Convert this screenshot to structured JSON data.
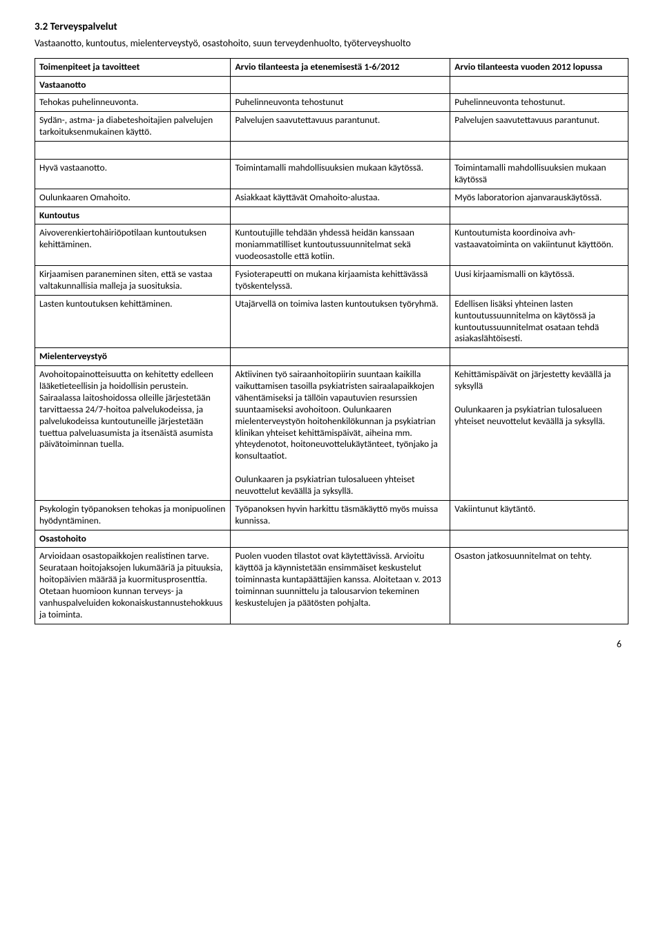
{
  "heading": "3.2 Terveyspalvelut",
  "subheading": "Vastaanotto, kuntoutus, mielenterveystyö, osastohoito, suun terveydenhuolto, työterveyshuolto",
  "columns": {
    "c1": "Toimenpiteet ja tavoitteet",
    "c2": "Arvio tilanteesta ja etenemisestä 1-6/2012",
    "c3": "Arvio tilanteesta vuoden 2012 lopussa"
  },
  "rows": [
    {
      "c1": "Vastaanotto",
      "c1_bold": true,
      "c2": "",
      "c3": ""
    },
    {
      "c1": "Tehokas puhelinneuvonta.",
      "c2": "Puhelinneuvonta tehostunut",
      "c3": "Puhelinneuvonta tehostunut."
    },
    {
      "c1": "Sydän-, astma- ja diabeteshoitajien palvelujen tarkoituksenmukainen käyttö.",
      "c2": "Palvelujen saavutettavuus parantunut.",
      "c2_just": true,
      "c3": "Palvelujen saavutettavuus parantunut."
    },
    {
      "blank": true
    },
    {
      "c1": "Hyvä vastaanotto.",
      "c2": "Toimintamalli mahdollisuuksien mukaan käytössä.",
      "c3": "Toimintamalli mahdollisuuksien mukaan käytössä"
    },
    {
      "c1": "Oulunkaaren Omahoito.",
      "c2": "Asiakkaat käyttävät Omahoito-alustaa.",
      "c3": "Myös laboratorion ajanvarauskäytössä."
    },
    {
      "c1": "Kuntoutus",
      "c1_bold": true,
      "c2": "",
      "c3": ""
    },
    {
      "c1": "Aivoverenkiertohäiriöpotilaan kuntoutuksen kehittäminen.",
      "c2": "Kuntoutujille tehdään yhdessä heidän kanssaan moniammatilliset kuntoutussuunnitelmat sekä vuodeosastolle että kotiin.",
      "c3": "Kuntoutumista koordinoiva avh-vastaavatoiminta on vakiintunut käyttöön."
    },
    {
      "c1": "Kirjaamisen paraneminen siten, että se vastaa valtakunnallisia malleja ja suosituksia.",
      "c2": "Fysioterapeutti on mukana kirjaamista kehittävässä työskentelyssä.",
      "c3": "Uusi kirjaamismalli on käytössä."
    },
    {
      "c1": "Lasten kuntoutuksen kehittäminen.",
      "c2": "Utajärvellä on toimiva lasten kuntoutuksen työryhmä.",
      "c3": "Edellisen lisäksi yhteinen lasten kuntoutussuunnitelma on käytössä ja kuntoutussuunnitelmat osataan tehdä asiakaslähtöisesti."
    },
    {
      "c1": "Mielenterveystyö",
      "c1_bold": true,
      "c2": "",
      "c3": ""
    },
    {
      "c1": "Avohoitopainotteisuutta on kehitetty edelleen lääketieteellisin ja hoidollisin perustein. Sairaalassa laitoshoidossa olleille järjestetään tarvittaessa 24/7-hoitoa palvelukodeissa, ja palvelukodeissa kuntoutuneille järjestetään tuettua palveluasumista ja itsenäistä asumista päivätoiminnan tuella.",
      "c2": "Aktiivinen työ sairaanhoitopiirin suuntaan kaikilla vaikuttamisen tasoilla psykiatristen sairaalapaikkojen vähentämiseksi ja tällöin vapautuvien resurssien suuntaamiseksi avohoitoon. Oulunkaaren mielenterveystyön hoitohenkilökunnan ja psykiatrian klinikan yhteiset kehittämispäivät, aiheina mm. yhteydenotot, hoitoneuvottelukäytänteet, työnjako ja konsultaatiot.\n\nOulunkaaren ja psykiatrian tulosalueen yhteiset neuvottelut keväällä ja syksyllä.",
      "c3": "Kehittämispäivät on järjestetty keväällä ja syksyllä\n\nOulunkaaren ja psykiatrian tulosalueen yhteiset neuvottelut keväällä ja syksyllä."
    },
    {
      "c1": "Psykologin työpanoksen tehokas ja monipuolinen hyödyntäminen.",
      "c2": "Työpanoksen hyvin harkittu täsmäkäyttö myös muissa kunnissa.",
      "c3": "Vakiintunut käytäntö."
    },
    {
      "c1": "Osastohoito",
      "c1_bold": true,
      "c2": "",
      "c3": ""
    },
    {
      "c1": "Arvioidaan osastopaikkojen realistinen tarve. Seurataan hoitojaksojen lukumääriä ja pituuksia, hoitopäivien määrää ja kuormitusprosenttia. Otetaan huomioon kunnan terveys- ja vanhuspalveluiden kokonaiskustannustehokkuus ja toiminta.",
      "c2": "Puolen vuoden tilastot ovat käytettävissä.  Arvioitu käyttöä ja käynnistetään ensimmäiset keskustelut toiminnasta kuntapäättäjien kanssa. Aloitetaan v. 2013 toiminnan suunnittelu ja talousarvion tekeminen keskustelujen ja päätösten pohjalta.",
      "c3": "Osaston jatkosuunnitelmat on tehty."
    }
  ],
  "page_number": "6"
}
